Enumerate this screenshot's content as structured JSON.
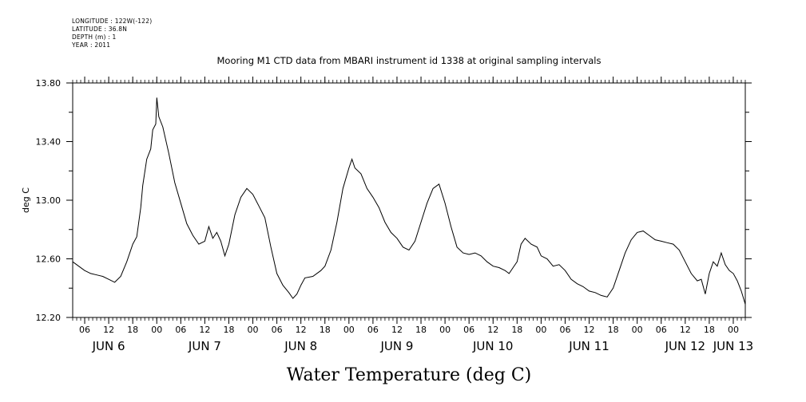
{
  "meta_lines": [
    "LONGITUDE : 122W(-122)",
    "LATITUDE : 36.8N",
    "DEPTH (m) : 1",
    "YEAR : 2011"
  ],
  "chart_data": {
    "type": "line",
    "title": "Mooring M1 CTD data from MBARI instrument id 1338 at original sampling intervals",
    "xlabel": "Water Temperature (deg C)",
    "ylabel": "deg C",
    "ylim": [
      12.2,
      13.8
    ],
    "yticks": [
      "12.20",
      "12.60",
      "13.00",
      "13.40",
      "13.80"
    ],
    "xlim": [
      "2011-06-06T03:00",
      "2011-06-13T03:00"
    ],
    "hour_ticks": [
      {
        "t": "2011-06-06T06:00",
        "label": "06"
      },
      {
        "t": "2011-06-06T12:00",
        "label": "12"
      },
      {
        "t": "2011-06-06T18:00",
        "label": "18"
      },
      {
        "t": "2011-06-07T00:00",
        "label": "00"
      },
      {
        "t": "2011-06-07T06:00",
        "label": "06"
      },
      {
        "t": "2011-06-07T12:00",
        "label": "12"
      },
      {
        "t": "2011-06-07T18:00",
        "label": "18"
      },
      {
        "t": "2011-06-08T00:00",
        "label": "00"
      },
      {
        "t": "2011-06-08T06:00",
        "label": "06"
      },
      {
        "t": "2011-06-08T12:00",
        "label": "12"
      },
      {
        "t": "2011-06-08T18:00",
        "label": "18"
      },
      {
        "t": "2011-06-09T00:00",
        "label": "00"
      },
      {
        "t": "2011-06-09T06:00",
        "label": "06"
      },
      {
        "t": "2011-06-09T12:00",
        "label": "12"
      },
      {
        "t": "2011-06-09T18:00",
        "label": "18"
      },
      {
        "t": "2011-06-10T00:00",
        "label": "00"
      },
      {
        "t": "2011-06-10T06:00",
        "label": "06"
      },
      {
        "t": "2011-06-10T12:00",
        "label": "12"
      },
      {
        "t": "2011-06-10T18:00",
        "label": "18"
      },
      {
        "t": "2011-06-11T00:00",
        "label": "00"
      },
      {
        "t": "2011-06-11T06:00",
        "label": "06"
      },
      {
        "t": "2011-06-11T12:00",
        "label": "12"
      },
      {
        "t": "2011-06-11T18:00",
        "label": "18"
      },
      {
        "t": "2011-06-12T00:00",
        "label": "00"
      },
      {
        "t": "2011-06-12T06:00",
        "label": "06"
      },
      {
        "t": "2011-06-12T12:00",
        "label": "12"
      },
      {
        "t": "2011-06-12T18:00",
        "label": "18"
      },
      {
        "t": "2011-06-13T00:00",
        "label": "00"
      }
    ],
    "day_labels": [
      {
        "t": "2011-06-06T12:00",
        "label": "JUN  6"
      },
      {
        "t": "2011-06-07T12:00",
        "label": "JUN  7"
      },
      {
        "t": "2011-06-08T12:00",
        "label": "JUN  8"
      },
      {
        "t": "2011-06-09T12:00",
        "label": "JUN  9"
      },
      {
        "t": "2011-06-10T12:00",
        "label": "JUN 10"
      },
      {
        "t": "2011-06-11T12:00",
        "label": "JUN 11"
      },
      {
        "t": "2011-06-12T12:00",
        "label": "JUN 12"
      },
      {
        "t": "2011-06-13T00:00",
        "label": "JUN 13"
      }
    ],
    "series": [
      {
        "color": "#000000",
        "points": [
          [
            "2011-06-06T03:00",
            12.58
          ],
          [
            "2011-06-06T04:30",
            12.55
          ],
          [
            "2011-06-06T06:00",
            12.52
          ],
          [
            "2011-06-06T07:30",
            12.5
          ],
          [
            "2011-06-06T09:00",
            12.49
          ],
          [
            "2011-06-06T10:30",
            12.48
          ],
          [
            "2011-06-06T12:00",
            12.46
          ],
          [
            "2011-06-06T13:30",
            12.44
          ],
          [
            "2011-06-06T15:00",
            12.48
          ],
          [
            "2011-06-06T16:30",
            12.58
          ],
          [
            "2011-06-06T18:00",
            12.7
          ],
          [
            "2011-06-06T19:00",
            12.75
          ],
          [
            "2011-06-06T20:00",
            12.95
          ],
          [
            "2011-06-06T20:30",
            13.1
          ],
          [
            "2011-06-06T21:30",
            13.28
          ],
          [
            "2011-06-06T22:30",
            13.35
          ],
          [
            "2011-06-06T23:00",
            13.48
          ],
          [
            "2011-06-06T23:45",
            13.52
          ],
          [
            "2011-06-07T00:00",
            13.7
          ],
          [
            "2011-06-07T00:30",
            13.57
          ],
          [
            "2011-06-07T01:30",
            13.5
          ],
          [
            "2011-06-07T03:00",
            13.32
          ],
          [
            "2011-06-07T04:30",
            13.12
          ],
          [
            "2011-06-07T06:00",
            12.98
          ],
          [
            "2011-06-07T07:30",
            12.84
          ],
          [
            "2011-06-07T09:00",
            12.76
          ],
          [
            "2011-06-07T10:30",
            12.7
          ],
          [
            "2011-06-07T12:00",
            12.72
          ],
          [
            "2011-06-07T13:00",
            12.82
          ],
          [
            "2011-06-07T14:00",
            12.74
          ],
          [
            "2011-06-07T15:00",
            12.78
          ],
          [
            "2011-06-07T16:00",
            12.72
          ],
          [
            "2011-06-07T17:00",
            12.62
          ],
          [
            "2011-06-07T18:00",
            12.7
          ],
          [
            "2011-06-07T19:30",
            12.9
          ],
          [
            "2011-06-07T21:00",
            13.02
          ],
          [
            "2011-06-07T22:30",
            13.08
          ],
          [
            "2011-06-08T00:00",
            13.04
          ],
          [
            "2011-06-08T01:30",
            12.96
          ],
          [
            "2011-06-08T03:00",
            12.88
          ],
          [
            "2011-06-08T04:30",
            12.68
          ],
          [
            "2011-06-08T06:00",
            12.5
          ],
          [
            "2011-06-08T07:30",
            12.42
          ],
          [
            "2011-06-08T09:00",
            12.37
          ],
          [
            "2011-06-08T10:00",
            12.33
          ],
          [
            "2011-06-08T11:00",
            12.36
          ],
          [
            "2011-06-08T12:00",
            12.42
          ],
          [
            "2011-06-08T13:00",
            12.47
          ],
          [
            "2011-06-08T15:00",
            12.48
          ],
          [
            "2011-06-08T17:00",
            12.52
          ],
          [
            "2011-06-08T18:00",
            12.55
          ],
          [
            "2011-06-08T19:30",
            12.66
          ],
          [
            "2011-06-08T21:00",
            12.85
          ],
          [
            "2011-06-08T22:30",
            13.08
          ],
          [
            "2011-06-09T00:00",
            13.22
          ],
          [
            "2011-06-09T00:45",
            13.28
          ],
          [
            "2011-06-09T01:30",
            13.22
          ],
          [
            "2011-06-09T03:00",
            13.18
          ],
          [
            "2011-06-09T04:30",
            13.08
          ],
          [
            "2011-06-09T06:00",
            13.02
          ],
          [
            "2011-06-09T07:30",
            12.95
          ],
          [
            "2011-06-09T09:00",
            12.85
          ],
          [
            "2011-06-09T10:30",
            12.78
          ],
          [
            "2011-06-09T12:00",
            12.74
          ],
          [
            "2011-06-09T13:30",
            12.68
          ],
          [
            "2011-06-09T15:00",
            12.66
          ],
          [
            "2011-06-09T16:30",
            12.72
          ],
          [
            "2011-06-09T18:00",
            12.85
          ],
          [
            "2011-06-09T19:30",
            12.98
          ],
          [
            "2011-06-09T21:00",
            13.08
          ],
          [
            "2011-06-09T22:30",
            13.11
          ],
          [
            "2011-06-10T00:00",
            12.98
          ],
          [
            "2011-06-10T01:30",
            12.82
          ],
          [
            "2011-06-10T03:00",
            12.68
          ],
          [
            "2011-06-10T04:30",
            12.64
          ],
          [
            "2011-06-10T06:00",
            12.63
          ],
          [
            "2011-06-10T07:30",
            12.64
          ],
          [
            "2011-06-10T09:00",
            12.62
          ],
          [
            "2011-06-10T10:30",
            12.58
          ],
          [
            "2011-06-10T12:00",
            12.55
          ],
          [
            "2011-06-10T13:30",
            12.54
          ],
          [
            "2011-06-10T15:00",
            12.52
          ],
          [
            "2011-06-10T16:00",
            12.5
          ],
          [
            "2011-06-10T17:00",
            12.54
          ],
          [
            "2011-06-10T18:00",
            12.58
          ],
          [
            "2011-06-10T19:00",
            12.7
          ],
          [
            "2011-06-10T20:00",
            12.74
          ],
          [
            "2011-06-10T21:30",
            12.7
          ],
          [
            "2011-06-10T23:00",
            12.68
          ],
          [
            "2011-06-11T00:00",
            12.62
          ],
          [
            "2011-06-11T01:30",
            12.6
          ],
          [
            "2011-06-11T03:00",
            12.55
          ],
          [
            "2011-06-11T04:30",
            12.56
          ],
          [
            "2011-06-11T06:00",
            12.52
          ],
          [
            "2011-06-11T07:30",
            12.46
          ],
          [
            "2011-06-11T09:00",
            12.43
          ],
          [
            "2011-06-11T10:30",
            12.41
          ],
          [
            "2011-06-11T12:00",
            12.38
          ],
          [
            "2011-06-11T13:30",
            12.37
          ],
          [
            "2011-06-11T15:00",
            12.35
          ],
          [
            "2011-06-11T16:30",
            12.34
          ],
          [
            "2011-06-11T18:00",
            12.4
          ],
          [
            "2011-06-11T19:30",
            12.52
          ],
          [
            "2011-06-11T21:00",
            12.64
          ],
          [
            "2011-06-11T22:30",
            12.73
          ],
          [
            "2011-06-12T00:00",
            12.78
          ],
          [
            "2011-06-12T01:30",
            12.79
          ],
          [
            "2011-06-12T03:00",
            12.76
          ],
          [
            "2011-06-12T04:30",
            12.73
          ],
          [
            "2011-06-12T06:00",
            12.72
          ],
          [
            "2011-06-12T07:30",
            12.71
          ],
          [
            "2011-06-12T09:00",
            12.7
          ],
          [
            "2011-06-12T10:30",
            12.66
          ],
          [
            "2011-06-12T12:00",
            12.58
          ],
          [
            "2011-06-12T13:30",
            12.5
          ],
          [
            "2011-06-12T15:00",
            12.45
          ],
          [
            "2011-06-12T16:00",
            12.46
          ],
          [
            "2011-06-12T17:00",
            12.36
          ],
          [
            "2011-06-12T18:00",
            12.5
          ],
          [
            "2011-06-12T19:00",
            12.58
          ],
          [
            "2011-06-12T20:00",
            12.55
          ],
          [
            "2011-06-12T21:00",
            12.64
          ],
          [
            "2011-06-12T22:00",
            12.56
          ],
          [
            "2011-06-12T23:00",
            12.52
          ],
          [
            "2011-06-13T00:00",
            12.5
          ],
          [
            "2011-06-13T01:00",
            12.45
          ],
          [
            "2011-06-13T02:00",
            12.38
          ],
          [
            "2011-06-13T03:00",
            12.29
          ]
        ]
      }
    ]
  }
}
